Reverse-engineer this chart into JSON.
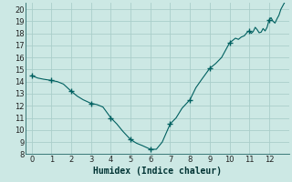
{
  "title": "",
  "xlabel": "Humidex (Indice chaleur)",
  "ylabel": "",
  "xlim": [
    -0.3,
    13.0
  ],
  "ylim": [
    8,
    20.5
  ],
  "yticks": [
    8,
    9,
    10,
    11,
    12,
    13,
    14,
    15,
    16,
    17,
    18,
    19,
    20
  ],
  "xticks": [
    0,
    1,
    2,
    3,
    4,
    5,
    6,
    7,
    8,
    9,
    10,
    11,
    12
  ],
  "bg_color": "#cce8e4",
  "grid_color": "#aaceca",
  "line_color": "#006060",
  "marker_color": "#006060",
  "x": [
    0,
    0.3,
    0.6,
    1.0,
    1.3,
    1.6,
    2.0,
    2.3,
    2.6,
    3.0,
    3.3,
    3.6,
    4.0,
    4.3,
    4.6,
    5.0,
    5.3,
    5.6,
    6.0,
    6.3,
    6.6,
    7.0,
    7.3,
    7.6,
    8.0,
    8.3,
    8.6,
    9.0,
    9.3,
    9.6,
    10.0,
    10.15,
    10.3,
    10.45,
    10.6,
    10.75,
    10.9,
    11.0,
    11.1,
    11.2,
    11.3,
    11.4,
    11.5,
    11.6,
    11.7,
    11.8,
    11.9,
    12.0,
    12.1,
    12.2,
    12.3,
    12.4,
    12.5,
    12.6,
    12.7,
    12.8
  ],
  "y": [
    14.5,
    14.3,
    14.2,
    14.1,
    14.0,
    13.8,
    13.2,
    12.8,
    12.5,
    12.2,
    12.1,
    11.9,
    11.0,
    10.5,
    9.9,
    9.2,
    8.9,
    8.7,
    8.4,
    8.4,
    9.0,
    10.5,
    11.0,
    11.8,
    12.5,
    13.5,
    14.2,
    15.1,
    15.5,
    16.0,
    17.2,
    17.4,
    17.6,
    17.5,
    17.7,
    17.8,
    18.1,
    18.2,
    18.0,
    18.15,
    18.5,
    18.3,
    18.05,
    18.1,
    18.4,
    18.2,
    18.5,
    19.1,
    19.3,
    19.0,
    18.85,
    19.2,
    19.5,
    20.0,
    20.3,
    20.6
  ],
  "marker_x": [
    0,
    1.0,
    2.0,
    3.0,
    4.0,
    5.0,
    6.0,
    7.0,
    8.0,
    9.0,
    10.0,
    11.0,
    12.0
  ],
  "marker_y": [
    14.5,
    14.1,
    13.2,
    12.2,
    11.0,
    9.2,
    8.4,
    10.5,
    12.5,
    15.1,
    17.2,
    18.2,
    19.1
  ]
}
